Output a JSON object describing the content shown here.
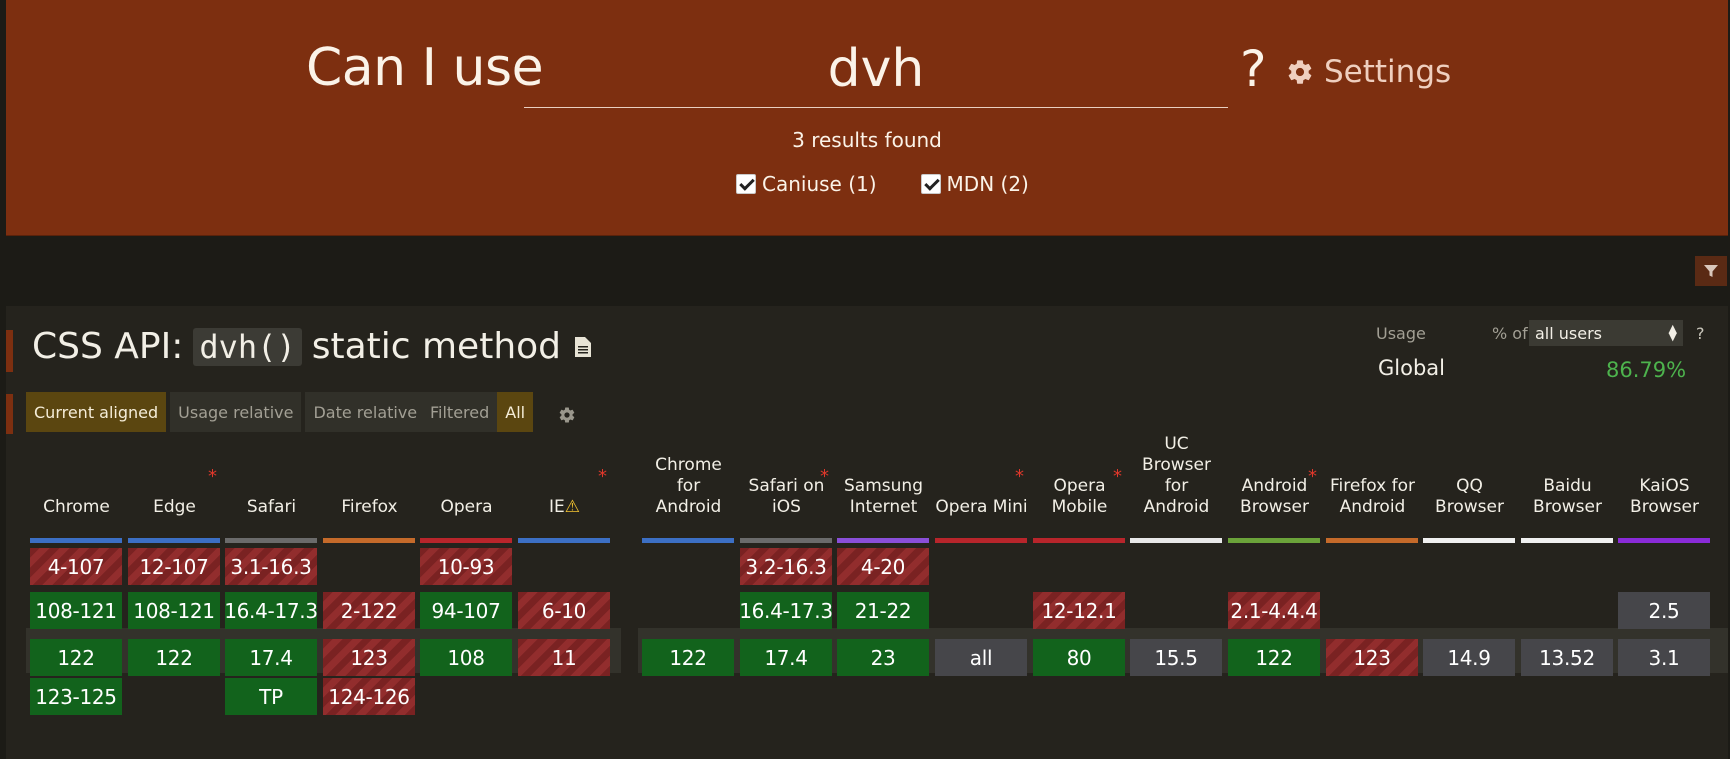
{
  "header": {
    "title": "Can I use",
    "search_value": "dvh",
    "question_mark": "?",
    "settings_label": "Settings",
    "results": "3 results found",
    "filters": [
      {
        "label": "Caniuse (1)",
        "checked": true
      },
      {
        "label": "MDN (2)",
        "checked": true
      }
    ]
  },
  "feature": {
    "title_prefix": "CSS API:",
    "title_code": "dvh()",
    "title_suffix": "static method",
    "usage_label": "Usage",
    "pct_of_label": "% of",
    "users_select": "all users",
    "help": "?",
    "global_label": "Global",
    "global_value": "86.79%",
    "view_tabs": [
      "Current aligned",
      "Usage relative",
      "Date relative"
    ],
    "filter_tabs": [
      "Filtered",
      "All"
    ]
  },
  "colors": {
    "supported": "#12631c",
    "unsupported": "#7a2222",
    "unknown": "#46464a",
    "header_bg": "#7d2f10",
    "global_value": "#4db34d"
  },
  "browsers": [
    {
      "name": "Chrome",
      "bar": "#3c6fc4",
      "star": false,
      "cells": [
        {
          "t": "4-107",
          "s": "n"
        },
        {
          "t": "108-121",
          "s": "y"
        },
        {
          "t": "122",
          "s": "y"
        },
        {
          "t": "123-125",
          "s": "y"
        }
      ]
    },
    {
      "name": "Edge",
      "bar": "#3c6fc4",
      "star": true,
      "cells": [
        {
          "t": "12-107",
          "s": "n"
        },
        {
          "t": "108-121",
          "s": "y"
        },
        {
          "t": "122",
          "s": "y"
        }
      ]
    },
    {
      "name": "Safari",
      "bar": "#6b6b6b",
      "star": false,
      "cells": [
        {
          "t": "3.1-16.3",
          "s": "n"
        },
        {
          "t": "16.4-17.3",
          "s": "y"
        },
        {
          "t": "17.4",
          "s": "y"
        },
        {
          "t": "TP",
          "s": "y"
        }
      ]
    },
    {
      "name": "Firefox",
      "bar": "#c56a2a",
      "star": false,
      "cells": [
        null,
        {
          "t": "2-122",
          "s": "n"
        },
        {
          "t": "123",
          "s": "n"
        },
        {
          "t": "124-126",
          "s": "n"
        }
      ]
    },
    {
      "name": "Opera",
      "bar": "#b8252b",
      "star": false,
      "cells": [
        {
          "t": "10-93",
          "s": "n"
        },
        {
          "t": "94-107",
          "s": "y"
        },
        {
          "t": "108",
          "s": "y"
        }
      ]
    },
    {
      "name": "IE",
      "bar": "#3c6fc4",
      "star": true,
      "warning": true,
      "cells": [
        null,
        {
          "t": "6-10",
          "s": "n"
        },
        {
          "t": "11",
          "s": "n"
        }
      ]
    },
    {
      "name": "Chrome for Android",
      "bar": "#3c6fc4",
      "star": false,
      "cells": [
        null,
        null,
        {
          "t": "122",
          "s": "y"
        }
      ]
    },
    {
      "name": "Safari on iOS",
      "bar": "#6b6b6b",
      "star": true,
      "cells": [
        {
          "t": "3.2-16.3",
          "s": "n"
        },
        {
          "t": "16.4-17.3",
          "s": "y"
        },
        {
          "t": "17.4",
          "s": "y"
        }
      ]
    },
    {
      "name": "Samsung Internet",
      "bar": "#8a4fd8",
      "star": false,
      "cells": [
        {
          "t": "4-20",
          "s": "n"
        },
        {
          "t": "21-22",
          "s": "y"
        },
        {
          "t": "23",
          "s": "y"
        }
      ]
    },
    {
      "name": "Opera Mini",
      "bar": "#b8252b",
      "star": true,
      "cells": [
        null,
        null,
        {
          "t": "all",
          "s": "u"
        }
      ]
    },
    {
      "name": "Opera Mobile",
      "bar": "#b8252b",
      "star": true,
      "cells": [
        null,
        {
          "t": "12-12.1",
          "s": "n"
        },
        {
          "t": "80",
          "s": "y"
        }
      ]
    },
    {
      "name": "UC Browser for Android",
      "bar": "#e8e8e8",
      "star": false,
      "cells": [
        null,
        null,
        {
          "t": "15.5",
          "s": "u"
        }
      ]
    },
    {
      "name": "Android Browser",
      "bar": "#6ba33a",
      "star": true,
      "cells": [
        null,
        {
          "t": "2.1-4.4.4",
          "s": "n"
        },
        {
          "t": "122",
          "s": "y"
        }
      ]
    },
    {
      "name": "Firefox for Android",
      "bar": "#c56a2a",
      "star": false,
      "cells": [
        null,
        null,
        {
          "t": "123",
          "s": "n"
        }
      ]
    },
    {
      "name": "QQ Browser",
      "bar": "#f0f0f0",
      "star": false,
      "cells": [
        null,
        null,
        {
          "t": "14.9",
          "s": "u"
        }
      ]
    },
    {
      "name": "Baidu Browser",
      "bar": "#f0f0f0",
      "star": false,
      "cells": [
        null,
        null,
        {
          "t": "13.52",
          "s": "u"
        }
      ]
    },
    {
      "name": "KaiOS Browser",
      "bar": "#8a2bd8",
      "star": false,
      "cells": [
        null,
        {
          "t": "2.5",
          "s": "u"
        },
        {
          "t": "3.1",
          "s": "u"
        }
      ]
    }
  ]
}
